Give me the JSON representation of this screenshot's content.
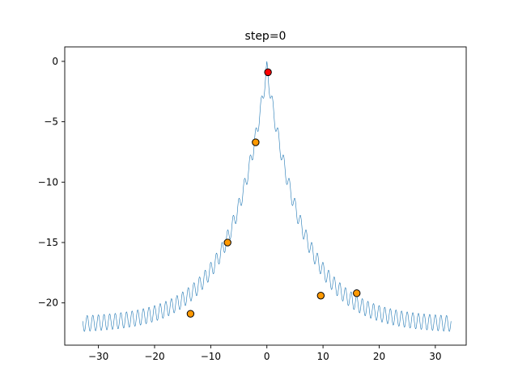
{
  "chart_data": {
    "type": "line",
    "title": "step=0",
    "xlabel": "",
    "ylabel": "",
    "xlim": [
      -36.0,
      35.5
    ],
    "ylim": [
      -23.5,
      1.2
    ],
    "xticks": [
      -30,
      -20,
      -10,
      0,
      10,
      20,
      30
    ],
    "yticks": [
      0,
      -5,
      -10,
      -15,
      -20
    ],
    "xtick_labels": [
      "−30",
      "−20",
      "−10",
      "0",
      "10",
      "20",
      "30"
    ],
    "ytick_labels": [
      "0",
      "−5",
      "−10",
      "−15",
      "−20"
    ],
    "grid": false,
    "series": [
      {
        "kind": "line",
        "color": "#1f77b4",
        "x_range": [
          -32.8,
          32.8
        ],
        "function": "-A*(1-exp(-|x|/s)) + B*(cos(2*pi*x)-1)",
        "params": {
          "A": 21.2,
          "s": 6.5,
          "B": 0.65
        }
      }
    ],
    "points": [
      {
        "x": -13.6,
        "y": -20.9,
        "color": "#ff9900",
        "edge": "#000000"
      },
      {
        "x": -7.0,
        "y": -15.0,
        "color": "#ff9900",
        "edge": "#000000"
      },
      {
        "x": -2.0,
        "y": -6.7,
        "color": "#ff9900",
        "edge": "#000000"
      },
      {
        "x": 9.6,
        "y": -19.4,
        "color": "#ff9900",
        "edge": "#000000"
      },
      {
        "x": 16.0,
        "y": -19.2,
        "color": "#ff9900",
        "edge": "#000000"
      },
      {
        "x": 0.2,
        "y": -0.9,
        "color": "#ff0000",
        "edge": "#000000"
      }
    ]
  }
}
